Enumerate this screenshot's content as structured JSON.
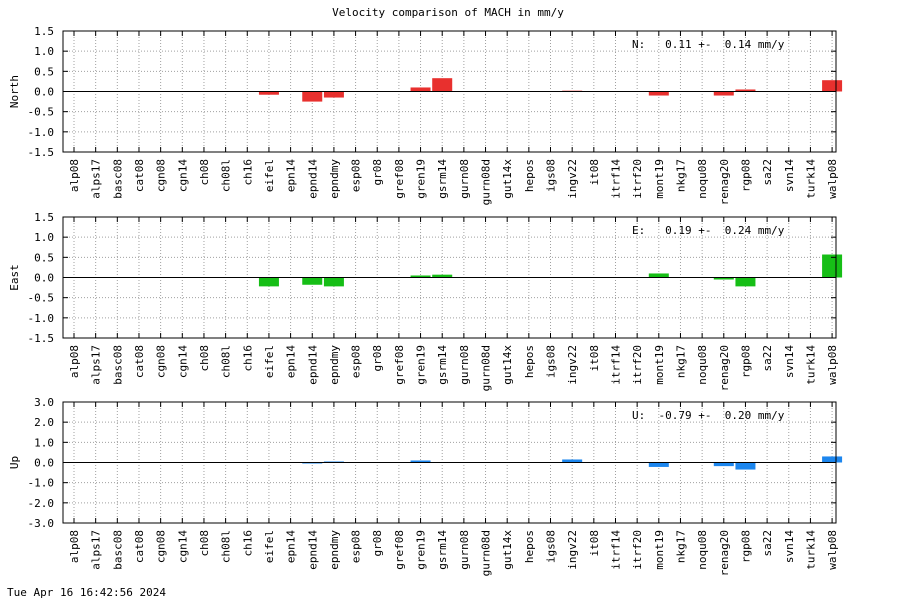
{
  "chart_data": {
    "type": "bar",
    "title": "Velocity comparison of MACH in mm/y",
    "categories": [
      "alp08",
      "alps17",
      "basc08",
      "cat08",
      "cgn08",
      "cgn14",
      "ch08",
      "ch08l",
      "ch16",
      "eifel",
      "epn14",
      "epnd14",
      "epndmy",
      "esp08",
      "gr08",
      "gref08",
      "gren19",
      "gsrm14",
      "gurn08",
      "gurn08d",
      "gut14x",
      "hepos",
      "igs08",
      "ingv22",
      "it08",
      "itrf14",
      "itrf20",
      "mont19",
      "nkg17",
      "noqu08",
      "renag20",
      "rgp08",
      "sa22",
      "svn14",
      "turk14",
      "walp08"
    ],
    "panels": [
      {
        "ylabel": "North",
        "ylim": [
          -1.5,
          1.5
        ],
        "yticks": [
          1.5,
          1.0,
          0.5,
          0.0,
          -0.5,
          -1.0,
          -1.5
        ],
        "ytick_labels": [
          "1.5",
          "1.0",
          "0.5",
          "0.0",
          "-0.5",
          "-1.0",
          "-1.5"
        ],
        "annotation": "N:   0.11 +-  0.14 mm/y",
        "color": "#e8302e",
        "values": [
          0,
          0,
          0,
          0,
          0,
          0,
          0,
          0,
          0,
          -0.08,
          0,
          -0.25,
          -0.15,
          0,
          0,
          0,
          0.1,
          0.33,
          0,
          0,
          0,
          0,
          0,
          0.02,
          0,
          0,
          0,
          -0.1,
          0,
          0,
          -0.1,
          0.05,
          0,
          0,
          0,
          0.28
        ]
      },
      {
        "ylabel": "East",
        "ylim": [
          -1.5,
          1.5
        ],
        "yticks": [
          1.5,
          1.0,
          0.5,
          0.0,
          -0.5,
          -1.0,
          -1.5
        ],
        "ytick_labels": [
          "1.5",
          "1.0",
          "0.5",
          "0.0",
          "-0.5",
          "-1.0",
          "-1.5"
        ],
        "annotation": "E:   0.19 +-  0.24 mm/y",
        "color": "#16be16",
        "values": [
          0,
          0,
          0,
          0,
          0,
          0,
          0,
          0,
          0,
          -0.22,
          0,
          -0.18,
          -0.22,
          0,
          0,
          0,
          0.05,
          0.07,
          0,
          0,
          0,
          0,
          0,
          0,
          0,
          0,
          0,
          0.1,
          0,
          0,
          -0.05,
          -0.22,
          0,
          0,
          0,
          0.57
        ]
      },
      {
        "ylabel": "Up",
        "ylim": [
          -3.0,
          3.0
        ],
        "yticks": [
          3.0,
          2.0,
          1.0,
          0.0,
          -1.0,
          -2.0,
          -3.0
        ],
        "ytick_labels": [
          "3.0",
          "2.0",
          "1.0",
          "0.0",
          "-1.0",
          "-2.0",
          "-3.0"
        ],
        "annotation": "U:  -0.79 +-  0.20 mm/y",
        "color": "#1c86ee",
        "values": [
          0,
          0,
          0,
          0,
          0,
          0,
          0,
          0,
          0,
          0,
          0,
          -0.05,
          0.05,
          0,
          0,
          0,
          0.1,
          0,
          0,
          0,
          0,
          0,
          0,
          0.15,
          0,
          0,
          0,
          -0.22,
          0,
          0,
          -0.18,
          -0.35,
          0,
          0,
          0,
          0.3
        ]
      }
    ],
    "grid": true
  },
  "timestamp": "Tue Apr 16 16:42:56 2024"
}
